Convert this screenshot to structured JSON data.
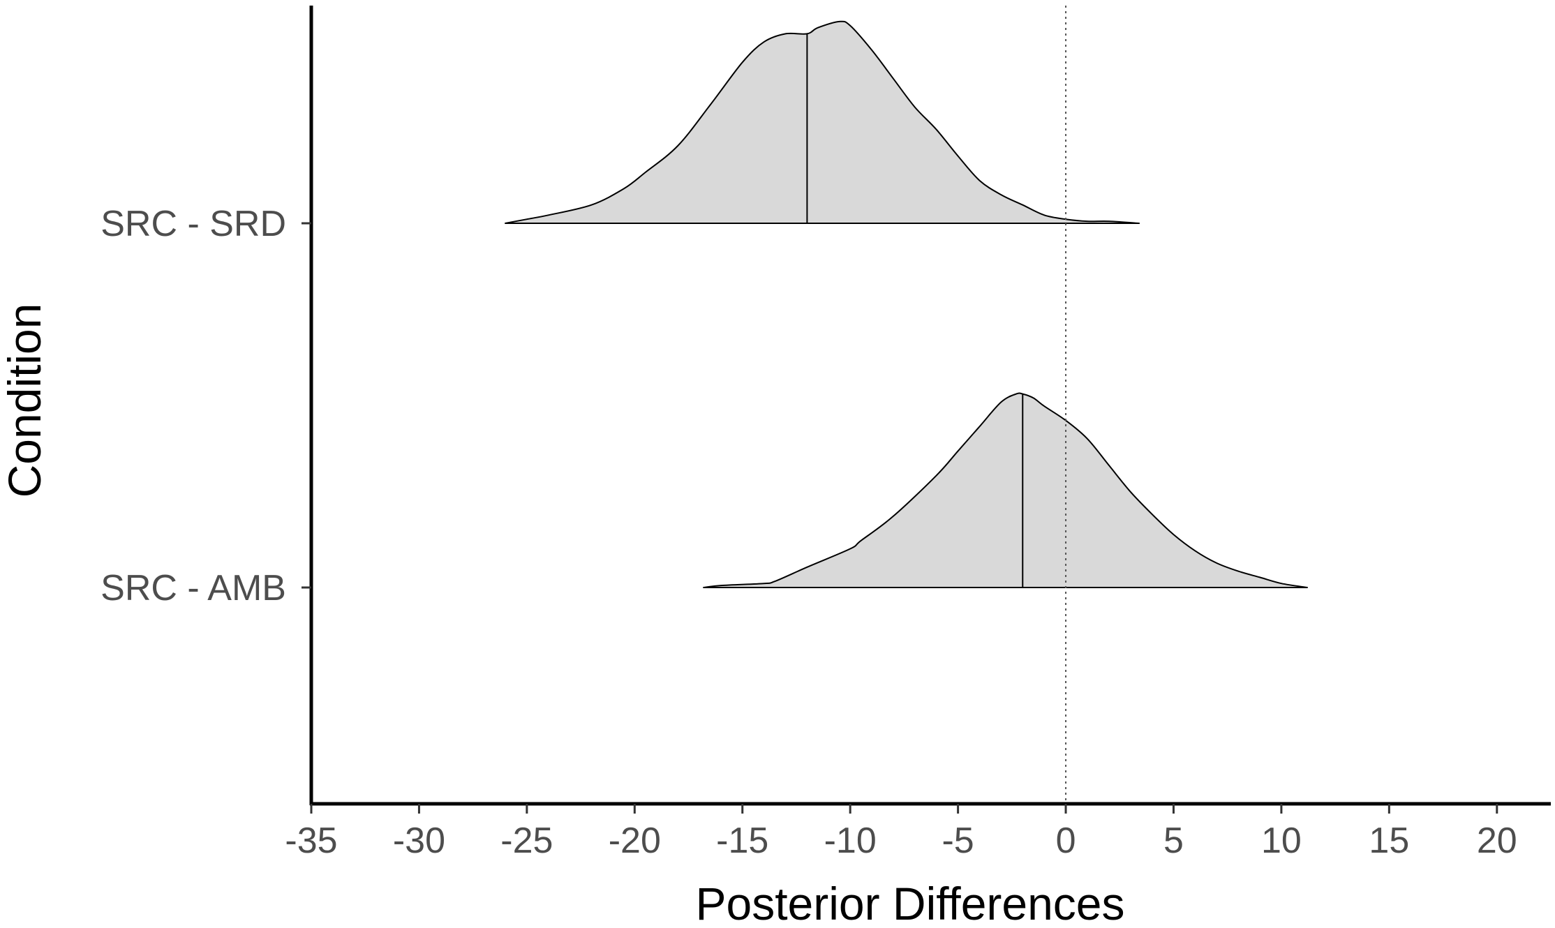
{
  "chart_data": {
    "type": "ridgeline-density",
    "title": "",
    "xlabel": "Posterior Differences",
    "ylabel": "Condition",
    "xlim": [
      -35,
      22.5
    ],
    "x_ticks": [
      -35,
      -30,
      -25,
      -20,
      -15,
      -10,
      -5,
      0,
      5,
      10,
      15,
      20
    ],
    "x_tick_labels": [
      "-35",
      "-30",
      "-25",
      "-20",
      "-15",
      "-10",
      "-5",
      "0",
      "5",
      "10",
      "15",
      "20"
    ],
    "reference_line": {
      "x": 0,
      "style": "dotted"
    },
    "grid": false,
    "legend": "none",
    "fill_color": "#d9d9d9",
    "line_color": "#000000",
    "categories": [
      "SRC - SRD",
      "SRC - AMB"
    ],
    "series": [
      {
        "name": "SRC - SRD",
        "median": -12,
        "x": [
          -26.0,
          -25,
          -24,
          -22,
          -20.5,
          -19.5,
          -18,
          -16.5,
          -15,
          -14,
          -13,
          -12,
          -11.5,
          -10.5,
          -10,
          -9,
          -8,
          -7,
          -6,
          -5,
          -4,
          -3,
          -2,
          -1,
          0,
          1,
          2,
          3.4
        ],
        "density": [
          0.0,
          0.02,
          0.04,
          0.09,
          0.17,
          0.25,
          0.38,
          0.58,
          0.79,
          0.89,
          0.93,
          0.93,
          0.96,
          0.99,
          0.97,
          0.85,
          0.71,
          0.57,
          0.46,
          0.33,
          0.21,
          0.14,
          0.09,
          0.04,
          0.02,
          0.01,
          0.01,
          0.0
        ]
      },
      {
        "name": "SRC - AMB",
        "median": -2,
        "x": [
          -16.8,
          -16,
          -14,
          -13.5,
          -12,
          -10,
          -9.5,
          -8,
          -6,
          -5,
          -4,
          -3,
          -2.3,
          -2,
          -1.5,
          -1,
          0,
          1,
          2,
          3,
          4,
          5,
          6,
          7,
          8,
          9,
          10,
          11.2
        ],
        "density": [
          0.0,
          0.01,
          0.02,
          0.03,
          0.1,
          0.19,
          0.23,
          0.35,
          0.55,
          0.67,
          0.79,
          0.91,
          0.95,
          0.95,
          0.93,
          0.89,
          0.82,
          0.73,
          0.6,
          0.47,
          0.36,
          0.26,
          0.18,
          0.12,
          0.08,
          0.05,
          0.02,
          0.0
        ]
      }
    ]
  }
}
